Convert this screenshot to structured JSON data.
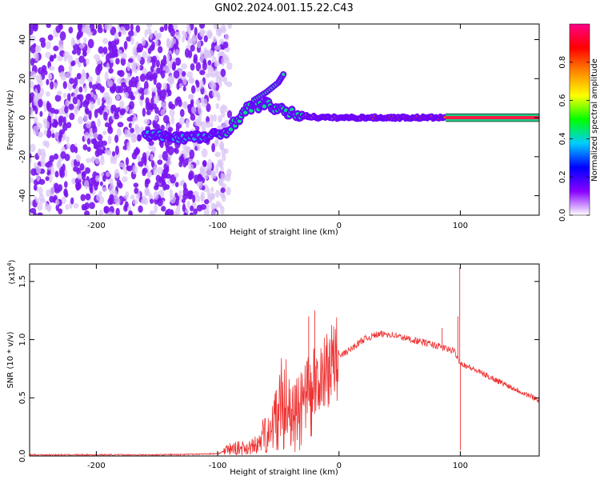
{
  "title": "GN02.2024.001.15.22.C43",
  "chart_data": [
    {
      "type": "heatmap",
      "name": "spectrogram",
      "xlabel": "Height of straight line (km)",
      "ylabel": "Frequency (Hz)",
      "xlim": [
        -255,
        165
      ],
      "ylim": [
        -50,
        48
      ],
      "xticks": [
        -200,
        -100,
        0,
        100
      ],
      "yticks": [
        -40,
        -20,
        0,
        20,
        40
      ],
      "colorbar": {
        "label": "Normalized spectral amplitude",
        "range": [
          0,
          1
        ],
        "ticks": [
          "0.0",
          "0.2",
          "0.4",
          "0.6",
          "0.8"
        ],
        "colors": [
          "#ffffff",
          "#8800ff",
          "#0000ff",
          "#00ccff",
          "#00ff00",
          "#ffff00",
          "#ff8800",
          "#ff0000",
          "#ff0088"
        ]
      },
      "features": {
        "noise_region_x": [
          -255,
          -90
        ],
        "track_points": [
          {
            "x": -160,
            "y": -9
          },
          {
            "x": -130,
            "y": -10
          },
          {
            "x": -110,
            "y": -10
          },
          {
            "x": -95,
            "y": -8
          },
          {
            "x": -85,
            "y": -2
          },
          {
            "x": -75,
            "y": 5
          },
          {
            "x": -60,
            "y": 7
          },
          {
            "x": -45,
            "y": 3
          },
          {
            "x": -30,
            "y": 1
          },
          {
            "x": -15,
            "y": 0
          },
          {
            "x": 0,
            "y": 0
          },
          {
            "x": 50,
            "y": 0
          },
          {
            "x": 85,
            "y": 0
          },
          {
            "x": 165,
            "y": 0
          }
        ],
        "branch_points": [
          {
            "x": -70,
            "y": 9
          },
          {
            "x": -60,
            "y": 13
          },
          {
            "x": -50,
            "y": 18
          },
          {
            "x": -45,
            "y": 23
          }
        ]
      }
    },
    {
      "type": "line",
      "name": "snr",
      "xlabel": "Height of straight line (km)",
      "ylabel": "SNR (10 * v/v)",
      "yscale_label": "(x10",
      "yscale_exp": "4",
      "yscale_close": ")",
      "xlim": [
        -255,
        165
      ],
      "ylim": [
        0,
        1.65
      ],
      "xticks": [
        -200,
        -100,
        0,
        100
      ],
      "yticks": [
        "0.0",
        "0.5",
        "1.0",
        "1.5"
      ],
      "color": "#ee3333",
      "envelope": [
        {
          "x": -255,
          "y": 0.01
        },
        {
          "x": -150,
          "y": 0.01
        },
        {
          "x": -100,
          "y": 0.02
        },
        {
          "x": -90,
          "y": 0.06
        },
        {
          "x": -70,
          "y": 0.08
        },
        {
          "x": -60,
          "y": 0.2
        },
        {
          "x": -50,
          "y": 0.35
        },
        {
          "x": -45,
          "y": 0.55
        },
        {
          "x": -40,
          "y": 0.3
        },
        {
          "x": -30,
          "y": 0.4
        },
        {
          "x": -20,
          "y": 0.55
        },
        {
          "x": -10,
          "y": 0.75
        },
        {
          "x": 0,
          "y": 0.85
        },
        {
          "x": 10,
          "y": 0.92
        },
        {
          "x": 20,
          "y": 1.0
        },
        {
          "x": 30,
          "y": 1.04
        },
        {
          "x": 40,
          "y": 1.05
        },
        {
          "x": 60,
          "y": 1.0
        },
        {
          "x": 80,
          "y": 0.95
        },
        {
          "x": 95,
          "y": 0.9
        },
        {
          "x": 100,
          "y": 0.8
        },
        {
          "x": 130,
          "y": 0.65
        },
        {
          "x": 165,
          "y": 0.48
        }
      ],
      "spikes": [
        {
          "x": -25,
          "y": 1.2
        },
        {
          "x": -20,
          "y": 1.25
        },
        {
          "x": 85,
          "y": 1.1
        },
        {
          "x": 98,
          "y": 1.2
        },
        {
          "x": 99.5,
          "y": 1.62
        },
        {
          "x": 100,
          "y": 0.05
        }
      ]
    }
  ]
}
